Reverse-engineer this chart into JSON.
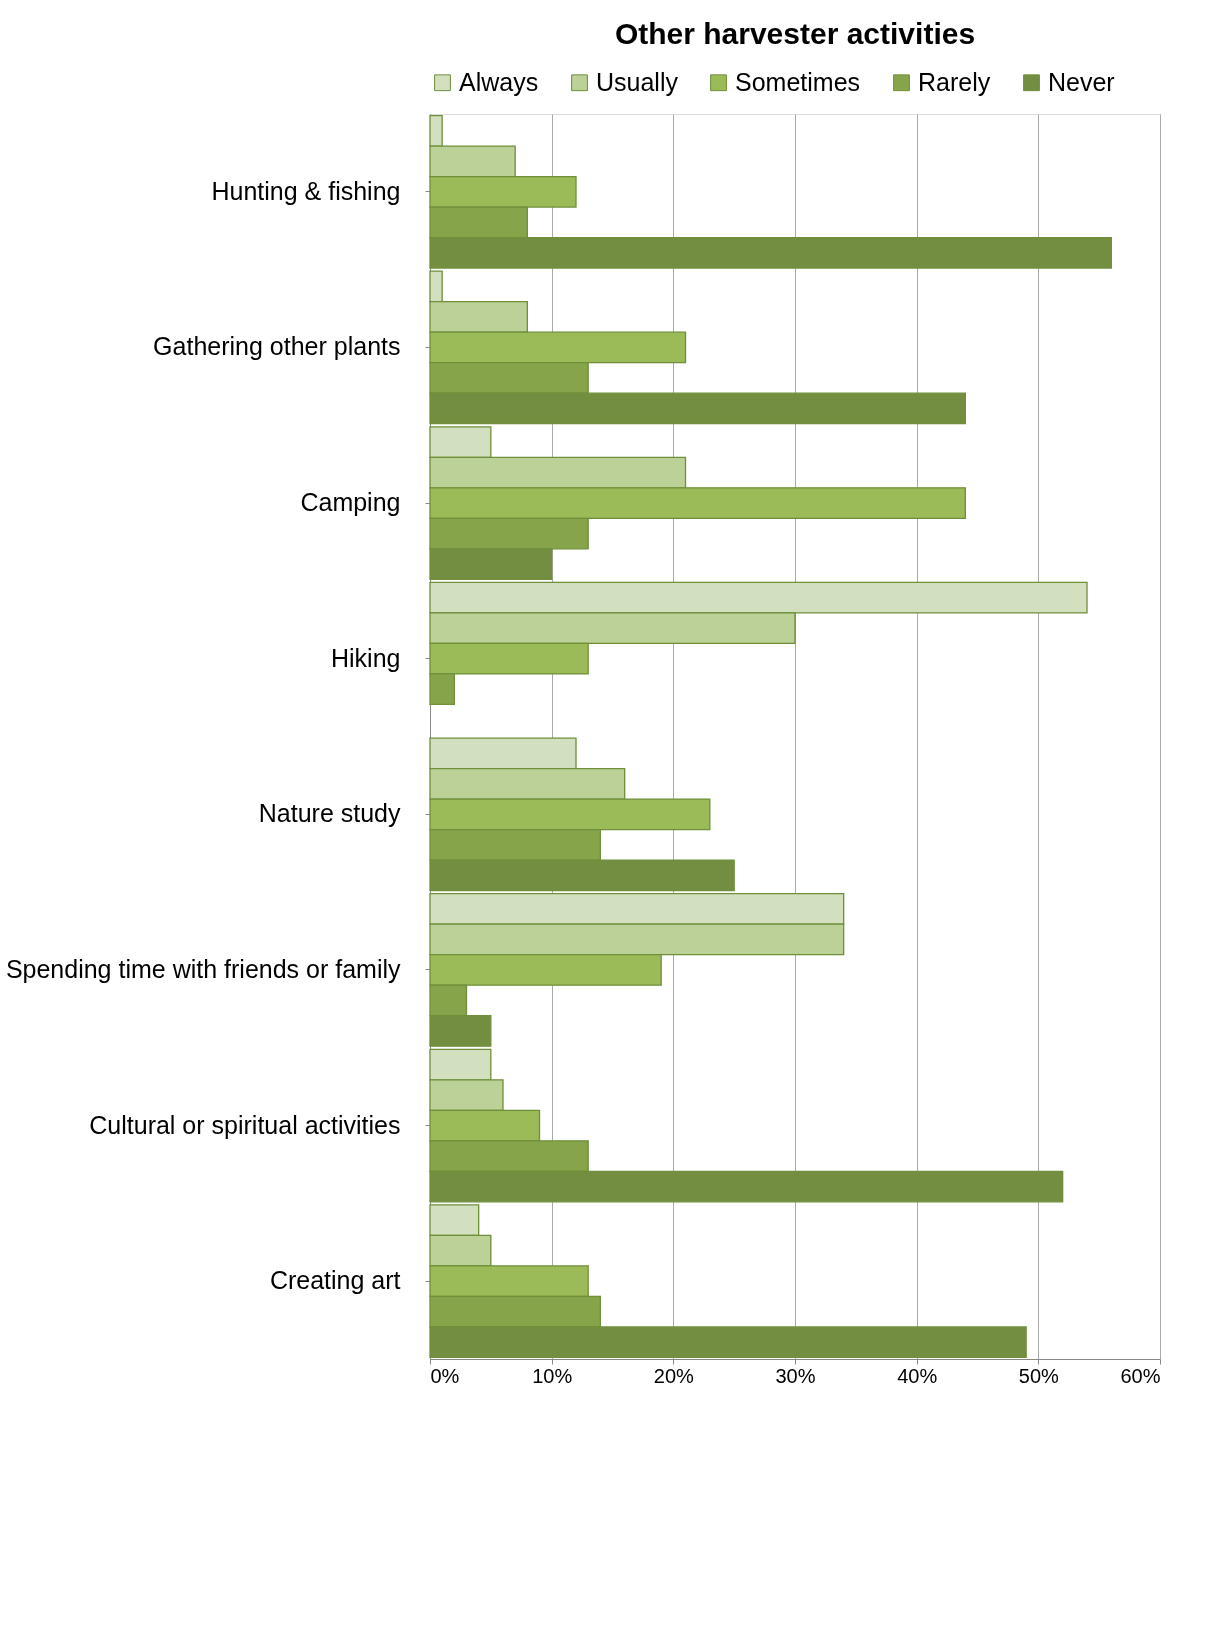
{
  "chart_data": {
    "type": "bar",
    "orientation": "horizontal",
    "title": "Other harvester activities",
    "categories": [
      "Hunting & fishing",
      "Gathering other plants",
      "Camping",
      "Hiking",
      "Nature study",
      "Spending time with friends or family",
      "Cultural or spiritual activities",
      "Creating art"
    ],
    "series": [
      {
        "name": "Always",
        "color": "#d3e0c0",
        "values": [
          1,
          1,
          5,
          54,
          12,
          34,
          5,
          4
        ]
      },
      {
        "name": "Usually",
        "color": "#bbd197",
        "values": [
          7,
          8,
          21,
          30,
          16,
          34,
          6,
          5
        ]
      },
      {
        "name": "Sometimes",
        "color": "#9bbb59",
        "values": [
          12,
          21,
          44,
          13,
          23,
          19,
          9,
          13
        ]
      },
      {
        "name": "Rarely",
        "color": "#86a44a",
        "values": [
          8,
          13,
          13,
          2,
          14,
          3,
          13,
          14
        ]
      },
      {
        "name": "Never",
        "color": "#748e41",
        "values": [
          56,
          44,
          10,
          null,
          25,
          5,
          52,
          49
        ]
      }
    ],
    "xlim": [
      0,
      60
    ],
    "xticks": [
      {
        "value": 0,
        "label": "0%"
      },
      {
        "value": 10,
        "label": "10%"
      },
      {
        "value": 20,
        "label": "20%"
      },
      {
        "value": 30,
        "label": "30%"
      },
      {
        "value": 40,
        "label": "40%"
      },
      {
        "value": 50,
        "label": "50%"
      },
      {
        "value": 60,
        "label": "60%"
      }
    ],
    "grid": "x",
    "legend": "top"
  }
}
